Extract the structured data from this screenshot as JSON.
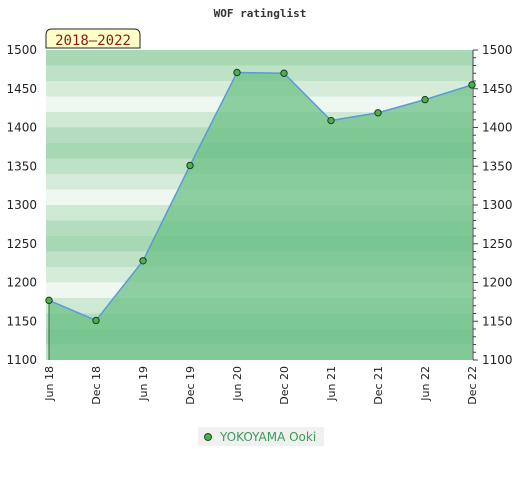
{
  "chart_data": {
    "type": "area",
    "title": "WOF ratinglist",
    "badge": "2018–2022",
    "categories": [
      "Jun 18",
      "Dec 18",
      "Jun 19",
      "Dec 19",
      "Jun 20",
      "Dec 20",
      "Jun 21",
      "Dec 21",
      "Jun 22",
      "Dec 22"
    ],
    "series": [
      {
        "name": "YOKOYAMA Ooki",
        "values": [
          1177,
          1151,
          1228,
          1351,
          1471,
          1470,
          1409,
          1419,
          1436,
          1455
        ]
      }
    ],
    "ylim": [
      1100,
      1500
    ],
    "yticks": [
      1100,
      1150,
      1200,
      1250,
      1300,
      1350,
      1400,
      1450,
      1500
    ],
    "y_axis_sides": [
      "left",
      "right"
    ],
    "grid": true,
    "legend": "bottom-center",
    "colors": {
      "line": "#5b9bd5",
      "fill": "#6abf83",
      "marker": "#4caf50",
      "legend_text": "#3c9a5c"
    }
  }
}
